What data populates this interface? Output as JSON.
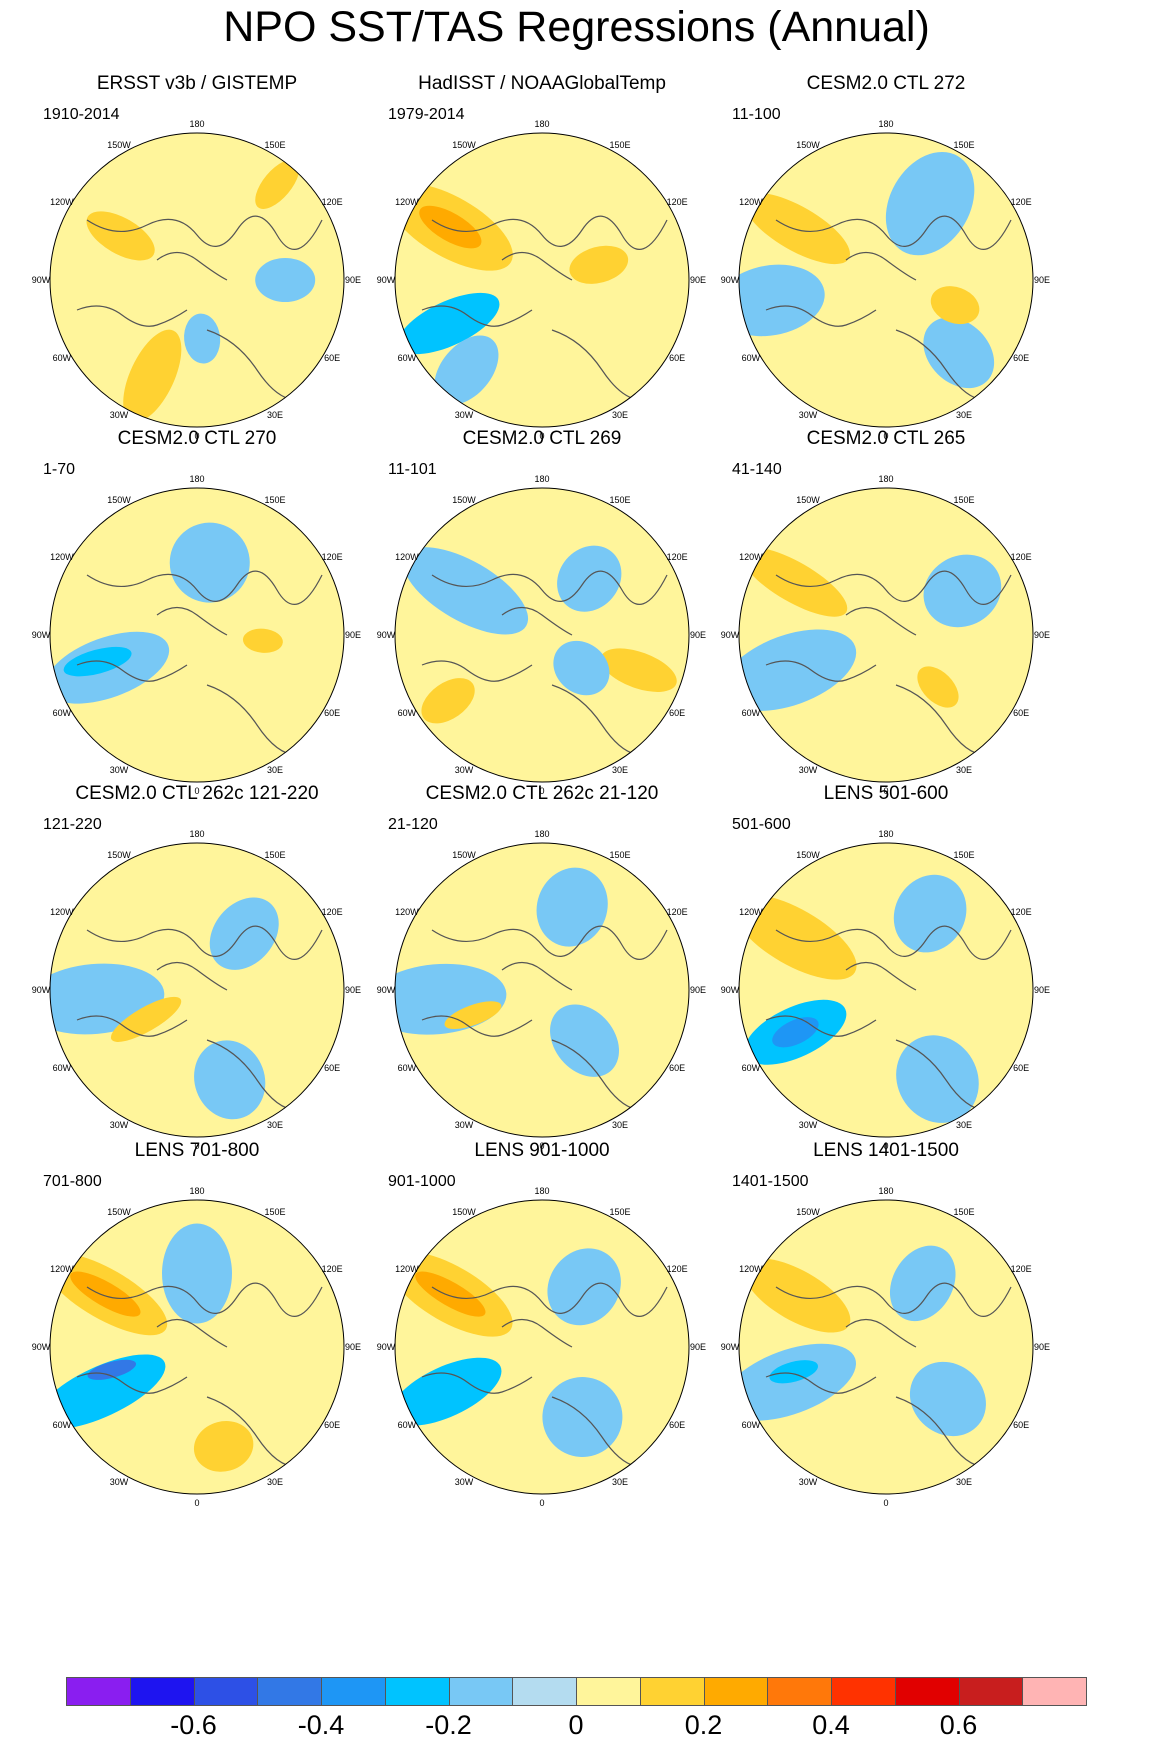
{
  "title": "NPO SST/TAS Regressions (Annual)",
  "longitude_labels": [
    "180",
    "150E",
    "120E",
    "90E",
    "60E",
    "30E",
    "0",
    "30W",
    "60W",
    "90W",
    "120W",
    "150W"
  ],
  "colorbar": {
    "colors": [
      "#8a1ef0",
      "#1e14f0",
      "#2d50e6",
      "#3278e6",
      "#1e96f5",
      "#00c3ff",
      "#78c8f5",
      "#b4dcf0",
      "#fff59b",
      "#ffd232",
      "#ffaa00",
      "#ff780a",
      "#ff3200",
      "#e10000",
      "#c81e1e",
      "#ffb4b4"
    ],
    "labels": [
      "-0.6",
      "-0.4",
      "-0.2",
      "0",
      "0.2",
      "0.4",
      "0.6"
    ]
  },
  "chart_data": [
    {
      "type": "polar-map",
      "title": "ERSST v3b / GISTEMP",
      "period": "1910-2014"
    },
    {
      "type": "polar-map",
      "title": "HadISST / NOAAGlobalTemp",
      "period": "1979-2014"
    },
    {
      "type": "polar-map",
      "title": "CESM2.0 CTL 272",
      "period": "11-100"
    },
    {
      "type": "polar-map",
      "title": "CESM2.0 CTL 270",
      "period": "1-70"
    },
    {
      "type": "polar-map",
      "title": "CESM2.0 CTL 269",
      "period": "11-101"
    },
    {
      "type": "polar-map",
      "title": "CESM2.0 CTL 265",
      "period": "41-140"
    },
    {
      "type": "polar-map",
      "title": "CESM2.0 CTL 262c 121-220",
      "period": "121-220"
    },
    {
      "type": "polar-map",
      "title": "CESM2.0 CTL 262c 21-120",
      "period": "21-120"
    },
    {
      "type": "polar-map",
      "title": "LENS 501-600",
      "period": "501-600"
    },
    {
      "type": "polar-map",
      "title": "LENS 701-800",
      "period": "701-800"
    },
    {
      "type": "polar-map",
      "title": "LENS 901-1000",
      "period": "901-1000"
    },
    {
      "type": "polar-map",
      "title": "LENS 1401-1500",
      "period": "1401-1500"
    }
  ]
}
